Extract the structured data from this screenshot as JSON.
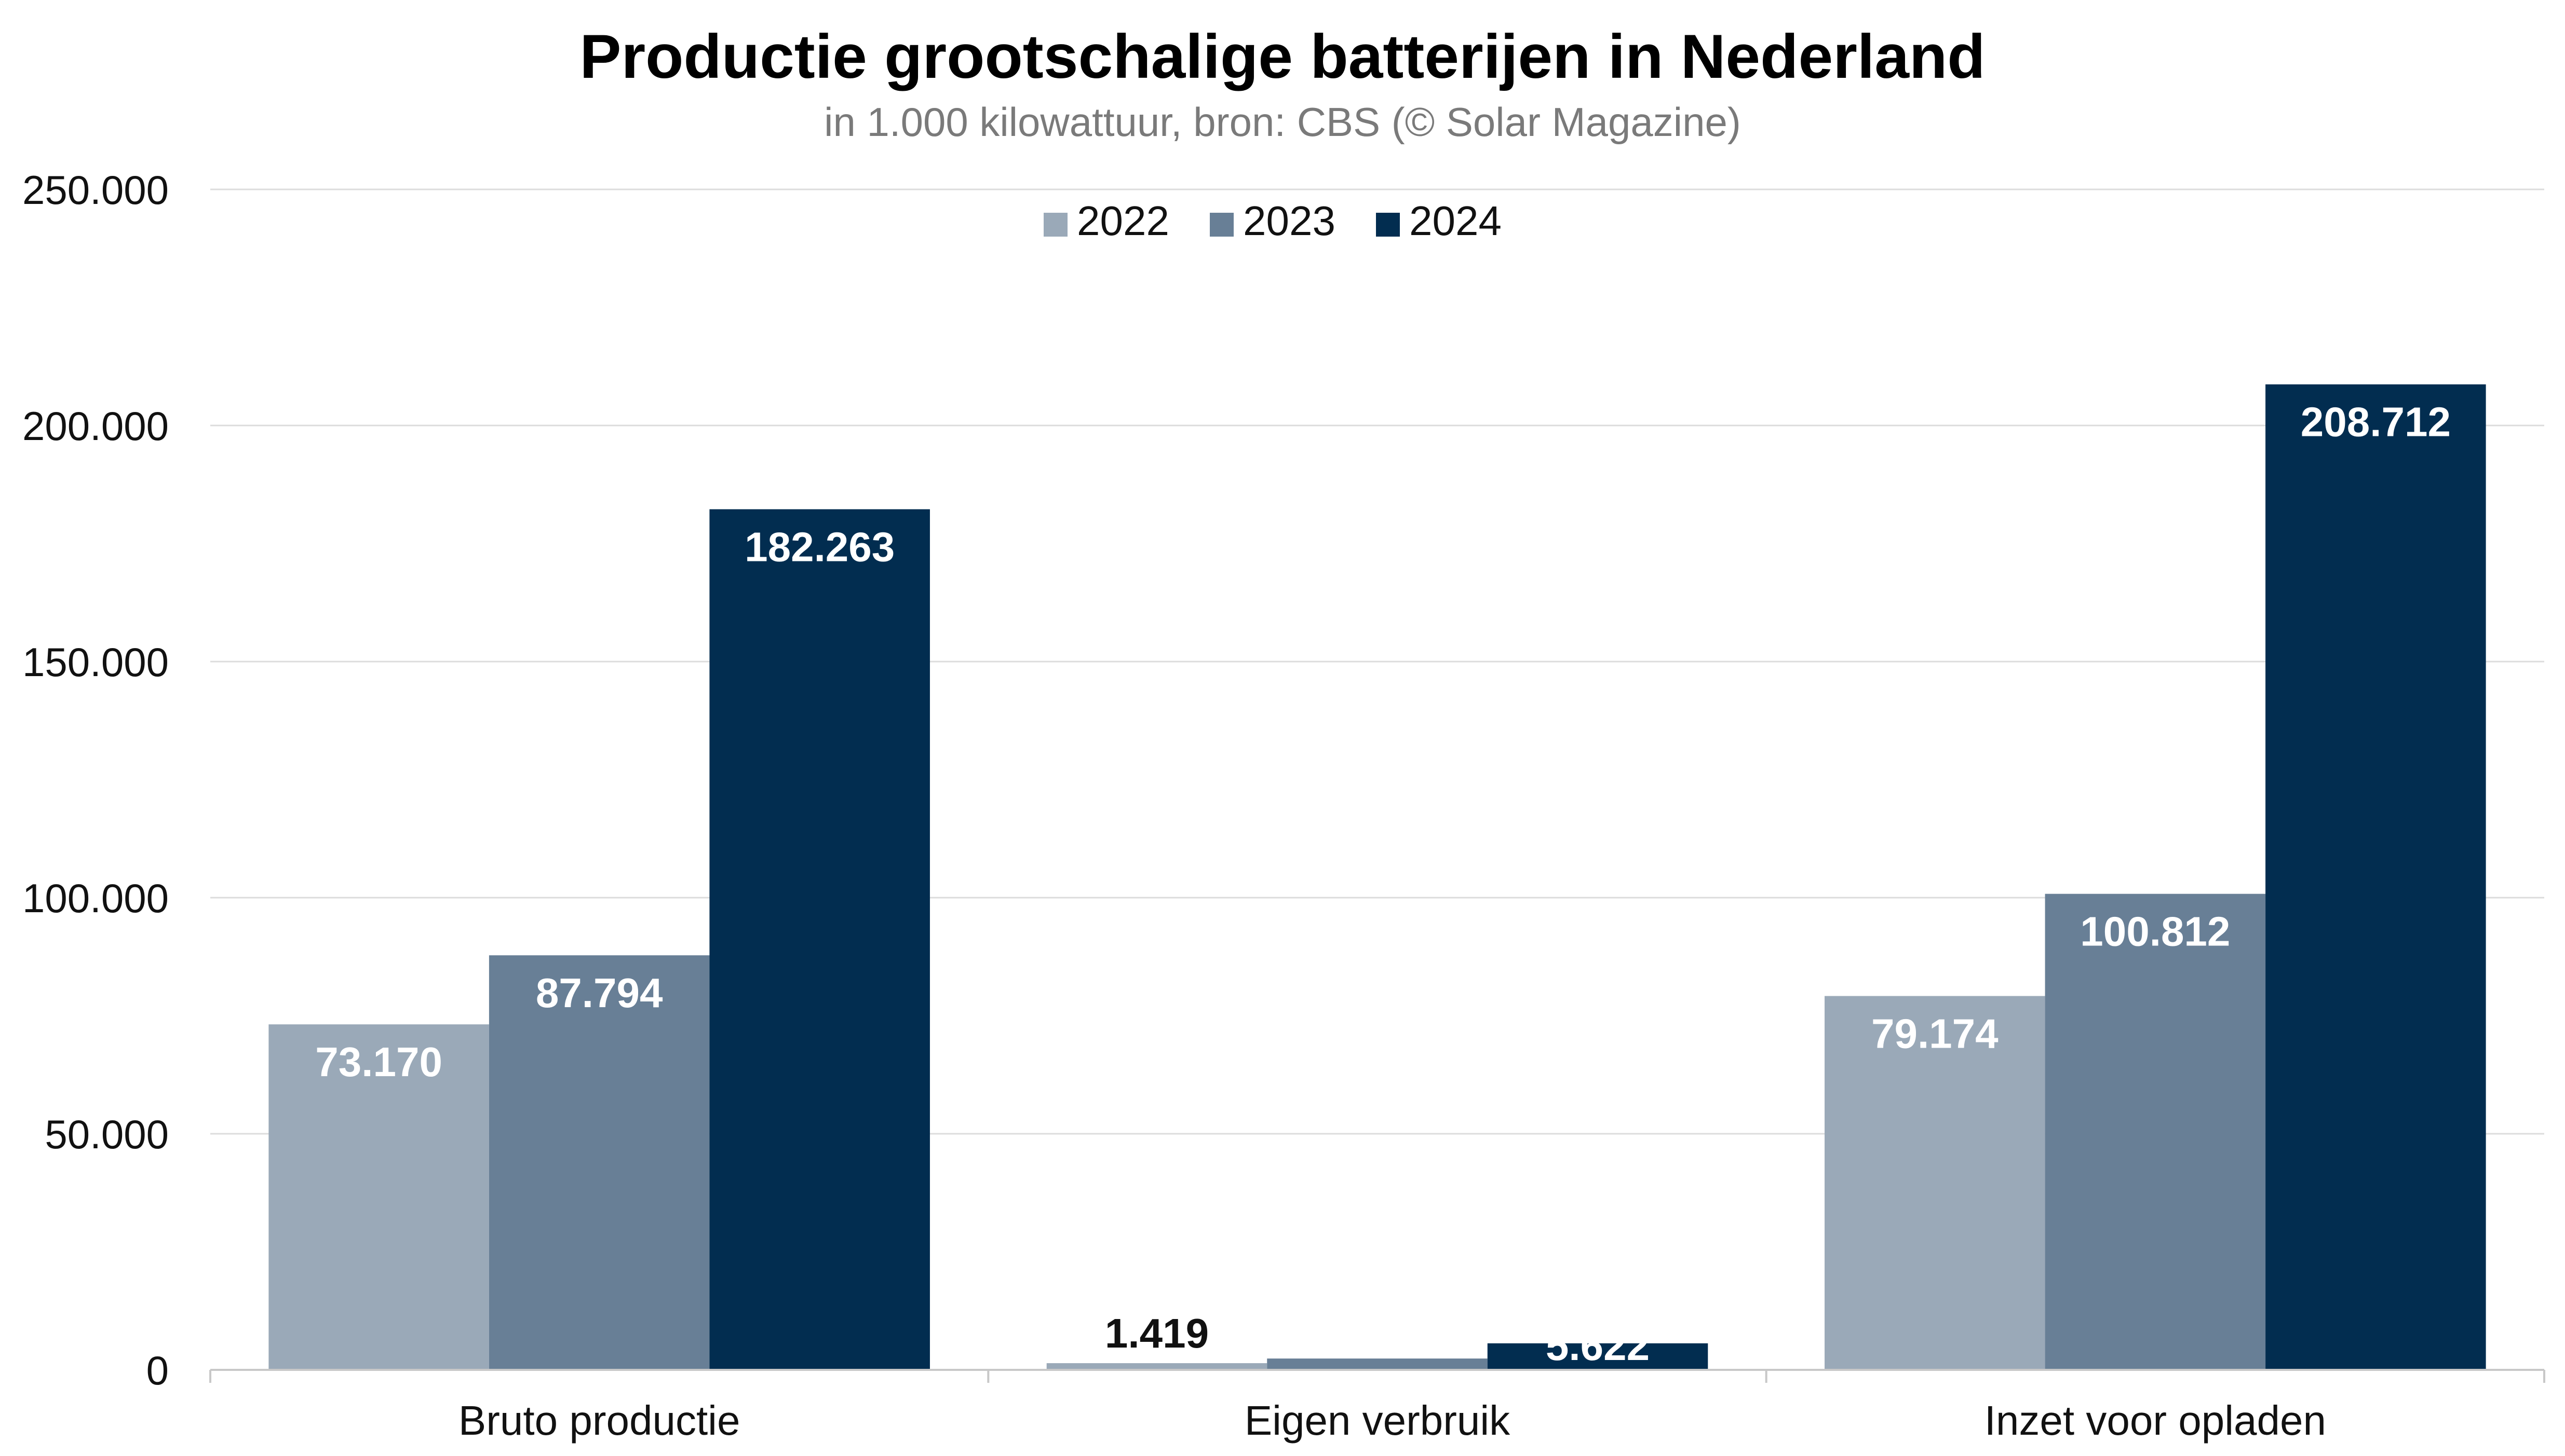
{
  "chart_data": {
    "type": "bar",
    "title": "Productie grootschalige batterijen in Nederland",
    "subtitle": "in 1.000 kilowattuur, bron: CBS (© Solar Magazine)",
    "xlabel": "",
    "ylabel": "",
    "ylim": [
      0,
      250000
    ],
    "yticks": [
      0,
      50000,
      100000,
      150000,
      200000,
      250000
    ],
    "ytick_labels": [
      "0",
      "50.000",
      "100.000",
      "150.000",
      "200.000",
      "250.000"
    ],
    "grid": true,
    "legend_position": "top-center",
    "categories": [
      "Bruto productie",
      "Eigen verbruik",
      "Inzet voor opladen"
    ],
    "series": [
      {
        "name": "2022",
        "color": "#9aa9b8",
        "values": [
          73170,
          1419,
          79174
        ],
        "labels": [
          "73.170",
          "1.419",
          "79.174"
        ]
      },
      {
        "name": "2023",
        "color": "#687f96",
        "values": [
          87794,
          2400,
          100812
        ],
        "labels": [
          "87.794",
          "",
          "100.812"
        ]
      },
      {
        "name": "2024",
        "color": "#022d50",
        "values": [
          182263,
          5622,
          208712
        ],
        "labels": [
          "182.263",
          "5.622",
          "208.712"
        ]
      }
    ]
  }
}
